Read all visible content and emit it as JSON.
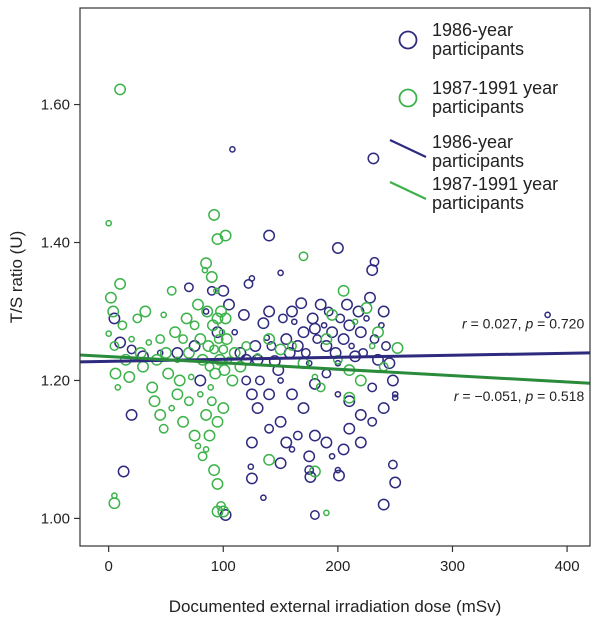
{
  "chart_data": {
    "type": "scatter",
    "xlabel": "Documented external irradiation dose (mSv)",
    "ylabel": "T/S ratio (U)",
    "xlim": [
      -25,
      420
    ],
    "ylim": [
      0.96,
      1.74
    ],
    "xticks": [
      0,
      100,
      200,
      300,
      400
    ],
    "yticks": [
      1.0,
      1.2,
      1.4,
      1.6
    ],
    "ytick_labels": [
      "1.00",
      "1.20",
      "1.40",
      "1.60"
    ],
    "grid": false,
    "legend_placement": "top-right",
    "legend": [
      {
        "label": [
          "1986-year",
          "participants"
        ],
        "kind": "marker",
        "color": "#2e2a7e"
      },
      {
        "label": [
          "1987-1991 year",
          "participants"
        ],
        "kind": "marker",
        "color": "#3cb34a"
      },
      {
        "label": [
          "1986-year",
          "participants"
        ],
        "kind": "line",
        "color": "#2e2a7e"
      },
      {
        "label": [
          "1987-1991 year",
          "participants"
        ],
        "kind": "line",
        "color": "#3cb34a"
      }
    ],
    "fit_lines": [
      {
        "color": "#2e2a7e",
        "x": [
          -25,
          420
        ],
        "y": [
          1.227,
          1.24
        ]
      },
      {
        "color": "#2a8b3b",
        "x": [
          -25,
          420
        ],
        "y": [
          1.237,
          1.196
        ]
      }
    ],
    "annotations": [
      {
        "parts": [
          {
            "t": "r",
            "i": true
          },
          {
            "t": " = 0.027, ",
            "i": false
          },
          {
            "t": "p",
            "i": true
          },
          {
            "t": " = 0.720",
            "i": false
          }
        ],
        "x": 415,
        "y": 1.275
      },
      {
        "parts": [
          {
            "t": "r",
            "i": true
          },
          {
            "t": " = −0.051, ",
            "i": false
          },
          {
            "t": "p",
            "i": true
          },
          {
            "t": " = 0.518",
            "i": false
          }
        ],
        "x": 415,
        "y": 1.17
      }
    ],
    "series": [
      {
        "color": "#2e2a7e",
        "points": [
          [
            108,
            1.535
          ],
          [
            231,
            1.522
          ],
          [
            140,
            1.41
          ],
          [
            200,
            1.392
          ],
          [
            232,
            1.372
          ],
          [
            383,
            1.295
          ],
          [
            5,
            1.29
          ],
          [
            10,
            1.255
          ],
          [
            20,
            1.245
          ],
          [
            30,
            1.235
          ],
          [
            45,
            1.24
          ],
          [
            60,
            1.24
          ],
          [
            70,
            1.335
          ],
          [
            75,
            1.25
          ],
          [
            80,
            1.2
          ],
          [
            85,
            1.3
          ],
          [
            90,
            1.33
          ],
          [
            95,
            1.27
          ],
          [
            100,
            1.33
          ],
          [
            105,
            1.31
          ],
          [
            110,
            1.27
          ],
          [
            115,
            1.24
          ],
          [
            118,
            1.295
          ],
          [
            120,
            1.23
          ],
          [
            122,
            1.34
          ],
          [
            125,
            1.348
          ],
          [
            128,
            1.25
          ],
          [
            130,
            1.23
          ],
          [
            132,
            1.2
          ],
          [
            135,
            1.283
          ],
          [
            138,
            1.262
          ],
          [
            140,
            1.3
          ],
          [
            142,
            1.25
          ],
          [
            145,
            1.228
          ],
          [
            148,
            1.215
          ],
          [
            150,
            1.356
          ],
          [
            152,
            1.29
          ],
          [
            155,
            1.26
          ],
          [
            158,
            1.24
          ],
          [
            160,
            1.3
          ],
          [
            162,
            1.285
          ],
          [
            165,
            1.25
          ],
          [
            168,
            1.312
          ],
          [
            170,
            1.27
          ],
          [
            172,
            1.24
          ],
          [
            175,
            1.225
          ],
          [
            178,
            1.29
          ],
          [
            180,
            1.275
          ],
          [
            182,
            1.26
          ],
          [
            185,
            1.31
          ],
          [
            188,
            1.28
          ],
          [
            190,
            1.25
          ],
          [
            192,
            1.3
          ],
          [
            195,
            1.27
          ],
          [
            198,
            1.24
          ],
          [
            200,
            1.225
          ],
          [
            202,
            1.29
          ],
          [
            205,
            1.26
          ],
          [
            208,
            1.31
          ],
          [
            210,
            1.28
          ],
          [
            212,
            1.25
          ],
          [
            215,
            1.235
          ],
          [
            218,
            1.3
          ],
          [
            220,
            1.27
          ],
          [
            222,
            1.24
          ],
          [
            225,
            1.29
          ],
          [
            228,
            1.32
          ],
          [
            230,
            1.36
          ],
          [
            232,
            1.26
          ],
          [
            235,
            1.23
          ],
          [
            238,
            1.28
          ],
          [
            240,
            1.3
          ],
          [
            242,
            1.25
          ],
          [
            245,
            1.225
          ],
          [
            248,
            1.2
          ],
          [
            250,
            1.18
          ],
          [
            120,
            1.2
          ],
          [
            125,
            1.18
          ],
          [
            130,
            1.16
          ],
          [
            140,
            1.18
          ],
          [
            150,
            1.2
          ],
          [
            160,
            1.18
          ],
          [
            170,
            1.16
          ],
          [
            180,
            1.195
          ],
          [
            190,
            1.21
          ],
          [
            200,
            1.18
          ],
          [
            210,
            1.17
          ],
          [
            220,
            1.15
          ],
          [
            230,
            1.19
          ],
          [
            240,
            1.16
          ],
          [
            250,
            1.175
          ],
          [
            125,
            1.11
          ],
          [
            140,
            1.13
          ],
          [
            150,
            1.14
          ],
          [
            155,
            1.11
          ],
          [
            160,
            1.1
          ],
          [
            165,
            1.12
          ],
          [
            175,
            1.09
          ],
          [
            180,
            1.12
          ],
          [
            190,
            1.11
          ],
          [
            195,
            1.09
          ],
          [
            205,
            1.1
          ],
          [
            210,
            1.13
          ],
          [
            220,
            1.11
          ],
          [
            230,
            1.14
          ],
          [
            124,
            1.075
          ],
          [
            125,
            1.058
          ],
          [
            150,
            1.08
          ],
          [
            175,
            1.07
          ],
          [
            176,
            1.06
          ],
          [
            200,
            1.07
          ],
          [
            201,
            1.062
          ],
          [
            248,
            1.078
          ],
          [
            13,
            1.068
          ],
          [
            20,
            1.15
          ],
          [
            135,
            1.03
          ],
          [
            180,
            1.005
          ],
          [
            250,
            1.052
          ],
          [
            240,
            1.02
          ],
          [
            102,
            1.005
          ]
        ]
      },
      {
        "color": "#3cb34a",
        "points": [
          [
            10,
            1.622
          ],
          [
            0,
            1.428
          ],
          [
            92,
            1.44
          ],
          [
            95,
            1.405
          ],
          [
            102,
            1.41
          ],
          [
            170,
            1.38
          ],
          [
            0,
            1.268
          ],
          [
            2,
            1.32
          ],
          [
            4,
            1.3
          ],
          [
            5,
            1.25
          ],
          [
            6,
            1.21
          ],
          [
            8,
            1.19
          ],
          [
            10,
            1.34
          ],
          [
            12,
            1.28
          ],
          [
            15,
            1.23
          ],
          [
            18,
            1.205
          ],
          [
            20,
            1.26
          ],
          [
            25,
            1.29
          ],
          [
            28,
            1.24
          ],
          [
            30,
            1.22
          ],
          [
            32,
            1.3
          ],
          [
            35,
            1.255
          ],
          [
            38,
            1.19
          ],
          [
            40,
            1.17
          ],
          [
            42,
            1.23
          ],
          [
            45,
            1.26
          ],
          [
            48,
            1.295
          ],
          [
            50,
            1.24
          ],
          [
            52,
            1.21
          ],
          [
            55,
            1.33
          ],
          [
            58,
            1.27
          ],
          [
            60,
            1.23
          ],
          [
            62,
            1.2
          ],
          [
            65,
            1.26
          ],
          [
            68,
            1.29
          ],
          [
            70,
            1.24
          ],
          [
            72,
            1.205
          ],
          [
            75,
            1.28
          ],
          [
            78,
            1.31
          ],
          [
            80,
            1.26
          ],
          [
            82,
            1.23
          ],
          [
            84,
            1.36
          ],
          [
            85,
            1.37
          ],
          [
            86,
            1.3
          ],
          [
            87,
            1.25
          ],
          [
            88,
            1.22
          ],
          [
            89,
            1.19
          ],
          [
            90,
            1.35
          ],
          [
            91,
            1.28
          ],
          [
            92,
            1.245
          ],
          [
            93,
            1.21
          ],
          [
            94,
            1.33
          ],
          [
            95,
            1.29
          ],
          [
            96,
            1.26
          ],
          [
            97,
            1.23
          ],
          [
            98,
            1.3
          ],
          [
            99,
            1.27
          ],
          [
            100,
            1.245
          ],
          [
            101,
            1.215
          ],
          [
            102,
            1.29
          ],
          [
            103,
            1.26
          ],
          [
            105,
            1.23
          ],
          [
            108,
            1.2
          ],
          [
            110,
            1.24
          ],
          [
            115,
            1.22
          ],
          [
            120,
            1.25
          ],
          [
            130,
            1.235
          ],
          [
            140,
            1.26
          ],
          [
            150,
            1.245
          ],
          [
            160,
            1.25
          ],
          [
            170,
            1.225
          ],
          [
            180,
            1.205
          ],
          [
            190,
            1.26
          ],
          [
            200,
            1.23
          ],
          [
            210,
            1.215
          ],
          [
            220,
            1.2
          ],
          [
            230,
            1.25
          ],
          [
            240,
            1.22
          ],
          [
            252,
            1.247
          ],
          [
            195,
            1.295
          ],
          [
            205,
            1.33
          ],
          [
            215,
            1.285
          ],
          [
            225,
            1.305
          ],
          [
            235,
            1.27
          ],
          [
            45,
            1.15
          ],
          [
            48,
            1.13
          ],
          [
            55,
            1.16
          ],
          [
            60,
            1.18
          ],
          [
            65,
            1.14
          ],
          [
            70,
            1.17
          ],
          [
            75,
            1.12
          ],
          [
            80,
            1.18
          ],
          [
            85,
            1.15
          ],
          [
            90,
            1.17
          ],
          [
            95,
            1.14
          ],
          [
            100,
            1.16
          ],
          [
            78,
            1.105
          ],
          [
            82,
            1.09
          ],
          [
            88,
            1.12
          ],
          [
            92,
            1.07
          ],
          [
            95,
            1.05
          ],
          [
            85,
            1.1
          ],
          [
            140,
            1.085
          ],
          [
            180,
            1.068
          ],
          [
            210,
            1.175
          ],
          [
            185,
            1.19
          ],
          [
            5,
            1.033
          ],
          [
            5,
            1.022
          ],
          [
            95,
            1.01
          ],
          [
            98,
            1.018
          ],
          [
            100,
            1.01
          ],
          [
            190,
            1.008
          ]
        ]
      }
    ]
  }
}
